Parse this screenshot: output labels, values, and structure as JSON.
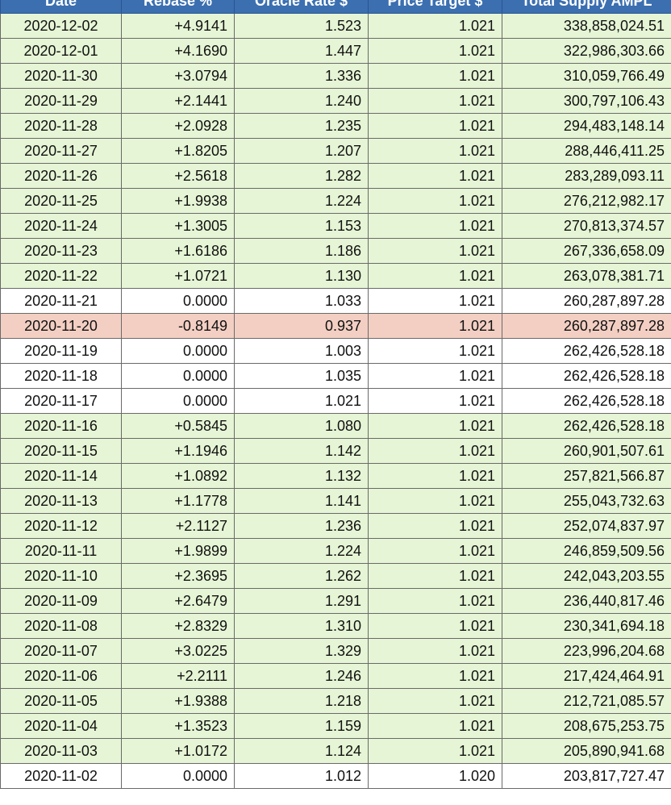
{
  "table": {
    "columns": [
      "Date",
      "Rebase %",
      "Oracle Rate $",
      "Price Target $",
      "Total Supply AMPL"
    ],
    "rows": [
      {
        "date": "2020-12-02",
        "rebase": "+4.9141",
        "oracle": "1.523",
        "target": "1.021",
        "supply": "338,858,024.51",
        "status": "positive"
      },
      {
        "date": "2020-12-01",
        "rebase": "+4.1690",
        "oracle": "1.447",
        "target": "1.021",
        "supply": "322,986,303.66",
        "status": "positive"
      },
      {
        "date": "2020-11-30",
        "rebase": "+3.0794",
        "oracle": "1.336",
        "target": "1.021",
        "supply": "310,059,766.49",
        "status": "positive"
      },
      {
        "date": "2020-11-29",
        "rebase": "+2.1441",
        "oracle": "1.240",
        "target": "1.021",
        "supply": "300,797,106.43",
        "status": "positive"
      },
      {
        "date": "2020-11-28",
        "rebase": "+2.0928",
        "oracle": "1.235",
        "target": "1.021",
        "supply": "294,483,148.14",
        "status": "positive"
      },
      {
        "date": "2020-11-27",
        "rebase": "+1.8205",
        "oracle": "1.207",
        "target": "1.021",
        "supply": "288,446,411.25",
        "status": "positive"
      },
      {
        "date": "2020-11-26",
        "rebase": "+2.5618",
        "oracle": "1.282",
        "target": "1.021",
        "supply": "283,289,093.11",
        "status": "positive"
      },
      {
        "date": "2020-11-25",
        "rebase": "+1.9938",
        "oracle": "1.224",
        "target": "1.021",
        "supply": "276,212,982.17",
        "status": "positive"
      },
      {
        "date": "2020-11-24",
        "rebase": "+1.3005",
        "oracle": "1.153",
        "target": "1.021",
        "supply": "270,813,374.57",
        "status": "positive"
      },
      {
        "date": "2020-11-23",
        "rebase": "+1.6186",
        "oracle": "1.186",
        "target": "1.021",
        "supply": "267,336,658.09",
        "status": "positive"
      },
      {
        "date": "2020-11-22",
        "rebase": "+1.0721",
        "oracle": "1.130",
        "target": "1.021",
        "supply": "263,078,381.71",
        "status": "positive"
      },
      {
        "date": "2020-11-21",
        "rebase": "0.0000",
        "oracle": "1.033",
        "target": "1.021",
        "supply": "260,287,897.28",
        "status": "neutral"
      },
      {
        "date": "2020-11-20",
        "rebase": "-0.8149",
        "oracle": "0.937",
        "target": "1.021",
        "supply": "260,287,897.28",
        "status": "negative"
      },
      {
        "date": "2020-11-19",
        "rebase": "0.0000",
        "oracle": "1.003",
        "target": "1.021",
        "supply": "262,426,528.18",
        "status": "neutral"
      },
      {
        "date": "2020-11-18",
        "rebase": "0.0000",
        "oracle": "1.035",
        "target": "1.021",
        "supply": "262,426,528.18",
        "status": "neutral"
      },
      {
        "date": "2020-11-17",
        "rebase": "0.0000",
        "oracle": "1.021",
        "target": "1.021",
        "supply": "262,426,528.18",
        "status": "neutral"
      },
      {
        "date": "2020-11-16",
        "rebase": "+0.5845",
        "oracle": "1.080",
        "target": "1.021",
        "supply": "262,426,528.18",
        "status": "positive"
      },
      {
        "date": "2020-11-15",
        "rebase": "+1.1946",
        "oracle": "1.142",
        "target": "1.021",
        "supply": "260,901,507.61",
        "status": "positive"
      },
      {
        "date": "2020-11-14",
        "rebase": "+1.0892",
        "oracle": "1.132",
        "target": "1.021",
        "supply": "257,821,566.87",
        "status": "positive"
      },
      {
        "date": "2020-11-13",
        "rebase": "+1.1778",
        "oracle": "1.141",
        "target": "1.021",
        "supply": "255,043,732.63",
        "status": "positive"
      },
      {
        "date": "2020-11-12",
        "rebase": "+2.1127",
        "oracle": "1.236",
        "target": "1.021",
        "supply": "252,074,837.97",
        "status": "positive"
      },
      {
        "date": "2020-11-11",
        "rebase": "+1.9899",
        "oracle": "1.224",
        "target": "1.021",
        "supply": "246,859,509.56",
        "status": "positive"
      },
      {
        "date": "2020-11-10",
        "rebase": "+2.3695",
        "oracle": "1.262",
        "target": "1.021",
        "supply": "242,043,203.55",
        "status": "positive"
      },
      {
        "date": "2020-11-09",
        "rebase": "+2.6479",
        "oracle": "1.291",
        "target": "1.021",
        "supply": "236,440,817.46",
        "status": "positive"
      },
      {
        "date": "2020-11-08",
        "rebase": "+2.8329",
        "oracle": "1.310",
        "target": "1.021",
        "supply": "230,341,694.18",
        "status": "positive"
      },
      {
        "date": "2020-11-07",
        "rebase": "+3.0225",
        "oracle": "1.329",
        "target": "1.021",
        "supply": "223,996,204.68",
        "status": "positive"
      },
      {
        "date": "2020-11-06",
        "rebase": "+2.2111",
        "oracle": "1.246",
        "target": "1.021",
        "supply": "217,424,464.91",
        "status": "positive"
      },
      {
        "date": "2020-11-05",
        "rebase": "+1.9388",
        "oracle": "1.218",
        "target": "1.021",
        "supply": "212,721,085.57",
        "status": "positive"
      },
      {
        "date": "2020-11-04",
        "rebase": "+1.3523",
        "oracle": "1.159",
        "target": "1.021",
        "supply": "208,675,253.75",
        "status": "positive"
      },
      {
        "date": "2020-11-03",
        "rebase": "+1.0172",
        "oracle": "1.124",
        "target": "1.021",
        "supply": "205,890,941.68",
        "status": "positive"
      },
      {
        "date": "2020-11-02",
        "rebase": "0.0000",
        "oracle": "1.012",
        "target": "1.020",
        "supply": "203,817,727.47",
        "status": "neutral"
      }
    ]
  },
  "colors": {
    "header_bg": "#3b6fb0",
    "positive_row": "#e6f5d5",
    "negative_row": "#f3cfc3",
    "neutral_row": "#ffffff"
  }
}
